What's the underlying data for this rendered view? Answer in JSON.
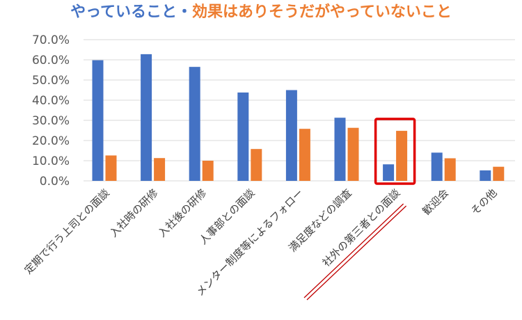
{
  "chart_data": {
    "type": "bar",
    "title_parts": {
      "part1": "やっていること",
      "separator": "・",
      "part2": "効果はありそうだがやっていないこと"
    },
    "categories": [
      "定期で行う上司との面談",
      "入社時の研修",
      "入社後の研修",
      "人事部との面談",
      "メンター制度等によるフォロー",
      "満足度などの調査",
      "社外の第三者との面談",
      "歓迎会",
      "その他"
    ],
    "series": [
      {
        "values": [
          59.8,
          62.8,
          56.5,
          43.8,
          45.0,
          31.3,
          8.2,
          14.0,
          5.2
        ]
      },
      {
        "values": [
          12.6,
          11.3,
          10.0,
          15.8,
          25.8,
          26.3,
          24.8,
          11.2,
          7.0
        ]
      }
    ],
    "ylim": [
      0,
      70
    ],
    "yticks": [
      "0.0%",
      "10.0%",
      "20.0%",
      "30.0%",
      "40.0%",
      "50.0%",
      "60.0%",
      "70.0%"
    ],
    "grid": true,
    "legend": "none",
    "highlight_category_index": 6,
    "colors": {
      "series1": "#4472c4",
      "series2": "#ed7d31",
      "highlight": "#e00000",
      "underline": "#c00000"
    }
  }
}
